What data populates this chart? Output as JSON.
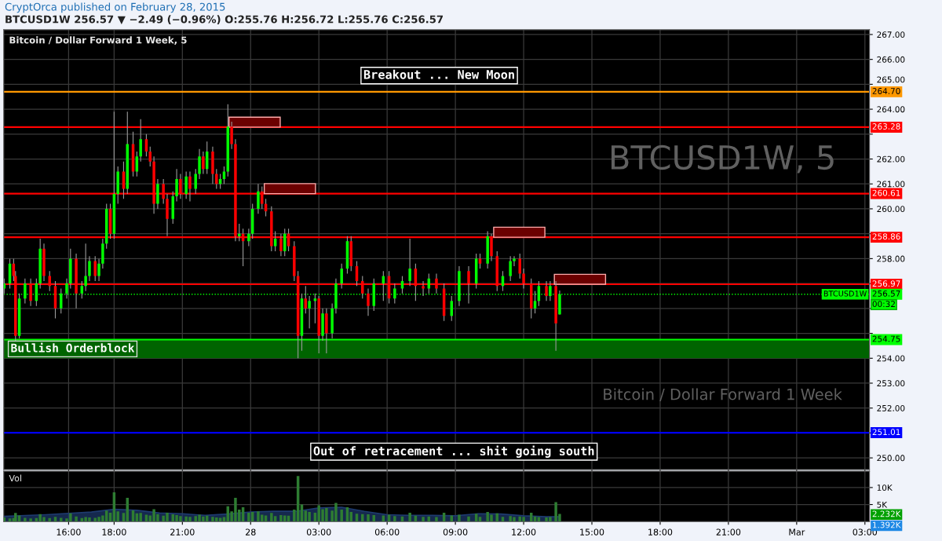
{
  "chart_data": [
    {
      "type": "candlestick",
      "title": "Bitcoin / Dollar Forward 1 Week, 5",
      "x": [
        "2015-02-27T13:10",
        "2015-02-27T13:25",
        "2015-02-27T13:35",
        "2015-02-27T13:40",
        "2015-02-27T13:50",
        "2015-02-27T14:05",
        "2015-02-27T14:20",
        "2015-02-27T14:35",
        "2015-02-27T14:45",
        "2015-02-27T14:55",
        "2015-02-27T15:10",
        "2015-02-27T15:25",
        "2015-02-27T15:40",
        "2015-02-27T15:55",
        "2015-02-27T16:05",
        "2015-02-27T16:20",
        "2015-02-27T16:35",
        "2015-02-27T16:45",
        "2015-02-27T16:55",
        "2015-02-27T17:10",
        "2015-02-27T17:20",
        "2015-02-27T17:30",
        "2015-02-27T17:40",
        "2015-02-27T17:50",
        "2015-02-27T18:00",
        "2015-02-27T18:10",
        "2015-02-27T18:25",
        "2015-02-27T18:35",
        "2015-02-27T18:50",
        "2015-02-27T19:00",
        "2015-02-27T19:10",
        "2015-02-27T19:25",
        "2015-02-27T19:35",
        "2015-02-27T19:45",
        "2015-02-27T19:55",
        "2015-02-27T20:10",
        "2015-02-27T20:20",
        "2015-02-27T20:35",
        "2015-02-27T20:45",
        "2015-02-27T20:55",
        "2015-02-27T21:10",
        "2015-02-27T21:20",
        "2015-02-27T21:35",
        "2015-02-27T21:45",
        "2015-02-27T21:55",
        "2015-02-27T22:05",
        "2015-02-27T22:20",
        "2015-02-27T22:30",
        "2015-02-27T22:40",
        "2015-02-27T22:50",
        "2015-02-27T23:00",
        "2015-02-27T23:10",
        "2015-02-27T23:20",
        "2015-02-27T23:30",
        "2015-02-27T23:40",
        "2015-02-27T23:55",
        "2015-02-28T00:05",
        "2015-02-28T00:20",
        "2015-02-28T00:30",
        "2015-02-28T00:40",
        "2015-02-28T00:55",
        "2015-02-28T01:05",
        "2015-02-28T01:20",
        "2015-02-28T01:30",
        "2015-02-28T01:40",
        "2015-02-28T01:55",
        "2015-02-28T02:05",
        "2015-02-28T02:15",
        "2015-02-28T02:25",
        "2015-02-28T02:35",
        "2015-02-28T02:50",
        "2015-02-28T03:00",
        "2015-02-28T03:10",
        "2015-02-28T03:20",
        "2015-02-28T03:35",
        "2015-02-28T03:45",
        "2015-02-28T04:00",
        "2015-02-28T04:15",
        "2015-02-28T04:25",
        "2015-02-28T04:40",
        "2015-02-28T04:55",
        "2015-02-28T05:10",
        "2015-02-28T05:25",
        "2015-02-28T05:50",
        "2015-02-28T06:05",
        "2015-02-28T06:20",
        "2015-02-28T06:40",
        "2015-02-28T07:00",
        "2015-02-28T07:15",
        "2015-02-28T07:35",
        "2015-02-28T07:50",
        "2015-02-28T08:10",
        "2015-02-28T08:30",
        "2015-02-28T08:50",
        "2015-02-28T09:10",
        "2015-02-28T09:35",
        "2015-02-28T09:55",
        "2015-02-28T10:05",
        "2015-02-28T10:25",
        "2015-02-28T10:35",
        "2015-02-28T10:50",
        "2015-02-28T11:05",
        "2015-02-28T11:25",
        "2015-02-28T11:35",
        "2015-02-28T11:50",
        "2015-02-28T12:00",
        "2015-02-28T12:20",
        "2015-02-28T12:30",
        "2015-02-28T12:40",
        "2015-02-28T13:00",
        "2015-02-28T13:10",
        "2015-02-28T13:25",
        "2015-02-28T13:35"
      ],
      "ohlc": [
        [
          256.8,
          257.2,
          256.6,
          257.0
        ],
        [
          257.0,
          258.0,
          256.8,
          257.8
        ],
        [
          257.8,
          258.0,
          257.1,
          257.3
        ],
        [
          257.3,
          257.5,
          254.7,
          254.9
        ],
        [
          254.9,
          256.6,
          254.8,
          256.4
        ],
        [
          256.4,
          257.2,
          256.2,
          257.0
        ],
        [
          257.0,
          257.2,
          256.1,
          256.3
        ],
        [
          256.3,
          257.2,
          256.1,
          257.0
        ],
        [
          257.0,
          258.8,
          256.8,
          258.4
        ],
        [
          258.4,
          258.6,
          257.1,
          257.3
        ],
        [
          257.3,
          257.5,
          256.7,
          256.9
        ],
        [
          256.9,
          257.1,
          255.6,
          256.0
        ],
        [
          256.0,
          256.8,
          255.8,
          256.6
        ],
        [
          256.6,
          257.2,
          256.4,
          257.0
        ],
        [
          257.0,
          258.4,
          256.8,
          258.0
        ],
        [
          258.0,
          258.2,
          256.0,
          256.6
        ],
        [
          256.6,
          257.1,
          256.4,
          256.9
        ],
        [
          256.9,
          258.6,
          256.7,
          257.3
        ],
        [
          257.3,
          258.1,
          257.1,
          257.9
        ],
        [
          257.9,
          258.1,
          257.1,
          257.3
        ],
        [
          257.3,
          258.0,
          257.1,
          257.8
        ],
        [
          257.8,
          258.8,
          257.6,
          258.6
        ],
        [
          258.6,
          260.2,
          258.4,
          260.0
        ],
        [
          260.0,
          260.2,
          258.8,
          259.0
        ],
        [
          259.0,
          263.9,
          258.8,
          260.6
        ],
        [
          260.6,
          261.7,
          260.2,
          261.5
        ],
        [
          261.5,
          261.9,
          260.4,
          260.8
        ],
        [
          260.8,
          263.9,
          260.6,
          262.6
        ],
        [
          262.6,
          263.1,
          261.3,
          261.5
        ],
        [
          261.5,
          262.3,
          261.3,
          262.1
        ],
        [
          262.1,
          263.6,
          261.9,
          262.8
        ],
        [
          262.8,
          263.0,
          262.1,
          262.3
        ],
        [
          262.3,
          262.5,
          261.7,
          261.9
        ],
        [
          261.9,
          262.1,
          259.8,
          260.2
        ],
        [
          260.2,
          261.2,
          260.0,
          261.0
        ],
        [
          261.0,
          261.2,
          260.2,
          260.4
        ],
        [
          260.4,
          260.6,
          258.9,
          259.6
        ],
        [
          259.6,
          260.7,
          259.4,
          260.5
        ],
        [
          260.5,
          261.6,
          260.3,
          261.2
        ],
        [
          261.2,
          261.4,
          260.4,
          260.6
        ],
        [
          260.6,
          261.5,
          260.4,
          261.3
        ],
        [
          261.3,
          261.5,
          260.3,
          260.8
        ],
        [
          260.8,
          261.6,
          260.6,
          261.4
        ],
        [
          261.4,
          262.4,
          261.2,
          262.1
        ],
        [
          262.1,
          262.3,
          261.4,
          261.6
        ],
        [
          261.6,
          262.7,
          261.4,
          262.3
        ],
        [
          262.3,
          262.5,
          261.0,
          261.4
        ],
        [
          261.4,
          261.6,
          260.8,
          261.0
        ],
        [
          261.0,
          261.4,
          260.8,
          261.2
        ],
        [
          261.2,
          261.7,
          261.0,
          261.5
        ],
        [
          261.5,
          264.2,
          261.3,
          263.3
        ],
        [
          263.3,
          263.5,
          262.4,
          262.6
        ],
        [
          262.6,
          262.8,
          258.7,
          258.9
        ],
        [
          258.9,
          259.4,
          258.7,
          259.0
        ],
        [
          259.0,
          259.2,
          257.7,
          258.7
        ],
        [
          258.7,
          259.2,
          258.5,
          259.0
        ],
        [
          259.0,
          260.2,
          258.8,
          260.0
        ],
        [
          260.0,
          261.0,
          259.8,
          260.7
        ],
        [
          260.7,
          260.9,
          260.0,
          260.2
        ],
        [
          260.2,
          260.4,
          259.7,
          259.9
        ],
        [
          259.9,
          260.1,
          258.3,
          258.5
        ],
        [
          258.5,
          259.1,
          258.3,
          258.8
        ],
        [
          258.8,
          259.0,
          258.1,
          258.3
        ],
        [
          258.3,
          259.2,
          258.1,
          259.0
        ],
        [
          259.0,
          259.2,
          258.3,
          258.5
        ],
        [
          258.5,
          258.7,
          257.1,
          257.3
        ],
        [
          257.3,
          257.5,
          254.0,
          254.9
        ],
        [
          254.9,
          256.6,
          254.3,
          256.4
        ],
        [
          256.4,
          256.9,
          255.8,
          256.0
        ],
        [
          256.0,
          256.5,
          255.2,
          256.3
        ],
        [
          256.3,
          256.6,
          255.4,
          256.4
        ],
        [
          256.4,
          256.5,
          254.2,
          254.9
        ],
        [
          254.9,
          256.0,
          254.7,
          255.8
        ],
        [
          255.8,
          256.0,
          254.2,
          255.0
        ],
        [
          255.0,
          256.2,
          254.8,
          256.0
        ],
        [
          256.0,
          257.2,
          255.8,
          257.0
        ],
        [
          257.0,
          257.8,
          256.8,
          257.6
        ],
        [
          257.6,
          258.9,
          257.4,
          258.7
        ],
        [
          258.7,
          258.9,
          257.5,
          257.7
        ],
        [
          257.7,
          257.9,
          256.9,
          257.1
        ],
        [
          257.1,
          257.3,
          256.4,
          256.6
        ],
        [
          256.6,
          256.8,
          255.7,
          256.1
        ],
        [
          256.1,
          257.2,
          255.9,
          257.0
        ],
        [
          257.0,
          257.5,
          256.3,
          257.3
        ],
        [
          257.3,
          257.5,
          256.2,
          256.4
        ],
        [
          256.4,
          257.0,
          256.2,
          256.8
        ],
        [
          256.8,
          257.3,
          256.6,
          257.1
        ],
        [
          257.1,
          258.8,
          256.9,
          257.6
        ],
        [
          257.6,
          257.8,
          256.3,
          256.9
        ],
        [
          256.9,
          257.1,
          256.5,
          256.8
        ],
        [
          256.8,
          257.4,
          256.6,
          257.2
        ],
        [
          257.2,
          257.4,
          256.6,
          256.8
        ],
        [
          256.8,
          257.0,
          255.5,
          255.7
        ],
        [
          255.7,
          256.5,
          255.5,
          256.3
        ],
        [
          256.3,
          257.7,
          256.1,
          257.5
        ],
        [
          257.5,
          257.7,
          256.2,
          257.0
        ],
        [
          257.0,
          258.2,
          256.8,
          258.0
        ],
        [
          258.0,
          258.2,
          257.6,
          257.8
        ],
        [
          257.8,
          259.1,
          257.6,
          258.9
        ],
        [
          258.9,
          259.0,
          257.9,
          258.1
        ],
        [
          258.1,
          258.3,
          256.7,
          256.9
        ],
        [
          256.9,
          257.5,
          256.7,
          257.3
        ],
        [
          257.3,
          258.1,
          257.1,
          257.9
        ],
        [
          257.9,
          258.1,
          257.7,
          258.0
        ],
        [
          258.0,
          258.2,
          257.2,
          257.4
        ],
        [
          257.4,
          257.6,
          256.8,
          257.0
        ],
        [
          257.0,
          257.2,
          255.6,
          256.0
        ],
        [
          256.0,
          256.7,
          255.8,
          256.3
        ],
        [
          256.3,
          257.1,
          256.1,
          256.9
        ],
        [
          256.9,
          257.1,
          256.3,
          256.5
        ],
        [
          256.5,
          257.1,
          256.3,
          256.9
        ],
        [
          256.9,
          257.1,
          254.3,
          255.4
        ],
        [
          255.76,
          256.72,
          255.76,
          256.57
        ]
      ],
      "colors": [
        "#00ff00",
        "#00ff00",
        "#ff0000",
        "#ff0000",
        "#00ff00",
        "#00ff00",
        "#ff0000",
        "#00ff00",
        "#00ff00",
        "#ff0000",
        "#ff0000",
        "#ff0000",
        "#00ff00",
        "#00ff00",
        "#00ff00",
        "#ff0000",
        "#00ff00",
        "#00ff00",
        "#00ff00",
        "#ff0000",
        "#00ff00",
        "#00ff00",
        "#00ff00",
        "#ff0000",
        "#00ff00",
        "#00ff00",
        "#ff0000",
        "#00ff00",
        "#ff0000",
        "#00ff00",
        "#00ff00",
        "#ff0000",
        "#ff0000",
        "#ff0000",
        "#00ff00",
        "#ff0000",
        "#ff0000",
        "#00ff00",
        "#00ff00",
        "#ff0000",
        "#00ff00",
        "#ff0000",
        "#00ff00",
        "#00ff00",
        "#ff0000",
        "#00ff00",
        "#ff0000",
        "#ff0000",
        "#00ff00",
        "#00ff00",
        "#00ff00",
        "#ff0000",
        "#ff0000",
        "#00ff00",
        "#ff0000",
        "#00ff00",
        "#00ff00",
        "#00ff00",
        "#ff0000",
        "#ff0000",
        "#ff0000",
        "#00ff00",
        "#ff0000",
        "#00ff00",
        "#ff0000",
        "#ff0000",
        "#ff0000",
        "#00ff00",
        "#ff0000",
        "#00ff00",
        "#00ff00",
        "#ff0000",
        "#00ff00",
        "#ff0000",
        "#00ff00",
        "#00ff00",
        "#00ff00",
        "#00ff00",
        "#ff0000",
        "#ff0000",
        "#ff0000",
        "#ff0000",
        "#00ff00",
        "#00ff00",
        "#ff0000",
        "#00ff00",
        "#00ff00",
        "#00ff00",
        "#ff0000",
        "#ff0000",
        "#00ff00",
        "#ff0000",
        "#ff0000",
        "#00ff00",
        "#00ff00",
        "#ff0000",
        "#00ff00",
        "#ff0000",
        "#00ff00",
        "#ff0000",
        "#ff0000",
        "#00ff00",
        "#00ff00",
        "#00ff00",
        "#ff0000",
        "#ff0000",
        "#ff0000",
        "#00ff00",
        "#00ff00",
        "#ff0000",
        "#00ff00",
        "#ff0000",
        "#00ff00"
      ],
      "xlim": [
        "2015-02-27T13:09",
        "2015-03-01T03:12"
      ],
      "ylim": [
        249.53,
        267.19
      ],
      "yticks": [
        {
          "value": 250,
          "label": "250.00"
        },
        {
          "value": 251,
          "label": null
        },
        {
          "value": 252,
          "label": "252.00"
        },
        {
          "value": 253,
          "label": "253.00"
        },
        {
          "value": 254,
          "label": "254.00"
        },
        {
          "value": 255,
          "label": null
        },
        {
          "value": 256,
          "label": null
        },
        {
          "value": 257,
          "label": null
        },
        {
          "value": 258,
          "label": "258.00"
        },
        {
          "value": 259,
          "label": null
        },
        {
          "value": 260,
          "label": "260.00"
        },
        {
          "value": 261,
          "label": "261.00"
        },
        {
          "value": 262,
          "label": "262.00"
        },
        {
          "value": 263,
          "label": null
        },
        {
          "value": 264,
          "label": "264.00"
        },
        {
          "value": 265,
          "label": "265.00"
        },
        {
          "value": 266,
          "label": "266.00"
        },
        {
          "value": 267,
          "label": "267.00"
        }
      ],
      "xticks": [
        {
          "value": "2015-02-27T16:00",
          "label": null
        },
        {
          "value": "2015-02-27T18:00",
          "label": null
        },
        {
          "value": "2015-02-27T21:00",
          "label": null
        },
        {
          "value": "2015-02-28T00:00",
          "label": null
        },
        {
          "value": "2015-02-28T03:00",
          "label": null
        },
        {
          "value": "2015-02-28T06:00",
          "label": null
        },
        {
          "value": "2015-02-28T09:00",
          "label": null
        },
        {
          "value": "2015-02-28T12:00",
          "label": null
        },
        {
          "value": "2015-02-28T15:00",
          "label": null
        },
        {
          "value": "2015-02-28T18:00",
          "label": null
        },
        {
          "value": "2015-02-28T21:00",
          "label": null
        },
        {
          "value": "2015-03-01T00:00",
          "label": null
        },
        {
          "value": "2015-03-01T03:00",
          "label": null
        }
      ],
      "tick_labels": "y",
      "grid": true,
      "ref_lines": [
        {
          "axis": "y",
          "value": 264.7,
          "label": "264.70",
          "color": "#ff9800"
        },
        {
          "axis": "y",
          "value": 263.28,
          "label": "263.28",
          "color": "#ff0000"
        },
        {
          "axis": "y",
          "value": 260.61,
          "label": "260.61",
          "color": "#ff0000"
        },
        {
          "axis": "y",
          "value": 258.86,
          "label": "258.86",
          "color": "#ff0000"
        },
        {
          "axis": "y",
          "value": 256.97,
          "label": "256.97",
          "color": "#ff0000"
        },
        {
          "axis": "y",
          "value": 256.57,
          "label": "256.57",
          "color": "#00ff00",
          "line_style": "dotted"
        },
        {
          "axis": "y",
          "value": 254.75,
          "label": "254.75",
          "color": "#00ff00"
        },
        {
          "axis": "y",
          "value": 251.01,
          "label": "251.01",
          "color": "#0000ff"
        }
      ],
      "bands": [
        {
          "axis": "y",
          "from": 254.0,
          "to": 254.75,
          "label": "Bullish Orderblock",
          "color": "#006400"
        }
      ],
      "annotations": [
        "CryptOrca published on February 28, 2015",
        "BTCUSD1W 256.57 ▼ −2.49 (−0.96%) O:255.76 H:256.72 L:255.76 C:256.57",
        "Breakout ... New Moon",
        "Out of retracement ... shit going south",
        "BTCUSD1W",
        "00:32",
        "BTCUSD1W, 5",
        "Bitcoin / Dollar Forward 1 Week"
      ]
    },
    {
      "type": "bar",
      "title": "Vol",
      "x": [
        "2015-02-27T13:10",
        "2015-02-27T13:25",
        "2015-02-27T13:35",
        "2015-02-27T13:40",
        "2015-02-27T13:50",
        "2015-02-27T14:05",
        "2015-02-27T14:20",
        "2015-02-27T14:35",
        "2015-02-27T14:45",
        "2015-02-27T14:55",
        "2015-02-27T15:10",
        "2015-02-27T15:25",
        "2015-02-27T15:40",
        "2015-02-27T15:55",
        "2015-02-27T16:05",
        "2015-02-27T16:20",
        "2015-02-27T16:35",
        "2015-02-27T16:45",
        "2015-02-27T16:55",
        "2015-02-27T17:10",
        "2015-02-27T17:20",
        "2015-02-27T17:30",
        "2015-02-27T17:40",
        "2015-02-27T17:50",
        "2015-02-27T18:00",
        "2015-02-27T18:10",
        "2015-02-27T18:25",
        "2015-02-27T18:35",
        "2015-02-27T18:50",
        "2015-02-27T19:00",
        "2015-02-27T19:10",
        "2015-02-27T19:25",
        "2015-02-27T19:35",
        "2015-02-27T19:45",
        "2015-02-27T19:55",
        "2015-02-27T20:10",
        "2015-02-27T20:20",
        "2015-02-27T20:35",
        "2015-02-27T20:45",
        "2015-02-27T20:55",
        "2015-02-27T21:10",
        "2015-02-27T21:20",
        "2015-02-27T21:35",
        "2015-02-27T21:45",
        "2015-02-27T21:55",
        "2015-02-27T22:05",
        "2015-02-27T22:20",
        "2015-02-27T22:30",
        "2015-02-27T22:40",
        "2015-02-27T22:50",
        "2015-02-27T23:00",
        "2015-02-27T23:10",
        "2015-02-27T23:20",
        "2015-02-27T23:30",
        "2015-02-27T23:40",
        "2015-02-27T23:55",
        "2015-02-28T00:05",
        "2015-02-28T00:20",
        "2015-02-28T00:30",
        "2015-02-28T00:40",
        "2015-02-28T00:55",
        "2015-02-28T01:05",
        "2015-02-28T01:20",
        "2015-02-28T01:30",
        "2015-02-28T01:40",
        "2015-02-28T01:55",
        "2015-02-28T02:05",
        "2015-02-28T02:15",
        "2015-02-28T02:25",
        "2015-02-28T02:35",
        "2015-02-28T02:50",
        "2015-02-28T03:00",
        "2015-02-28T03:10",
        "2015-02-28T03:20",
        "2015-02-28T03:35",
        "2015-02-28T03:45",
        "2015-02-28T04:00",
        "2015-02-28T04:15",
        "2015-02-28T04:25",
        "2015-02-28T04:40",
        "2015-02-28T04:55",
        "2015-02-28T05:10",
        "2015-02-28T05:25",
        "2015-02-28T05:50",
        "2015-02-28T06:05",
        "2015-02-28T06:20",
        "2015-02-28T06:40",
        "2015-02-28T07:00",
        "2015-02-28T07:15",
        "2015-02-28T07:35",
        "2015-02-28T07:50",
        "2015-02-28T08:10",
        "2015-02-28T08:30",
        "2015-02-28T08:50",
        "2015-02-28T09:10",
        "2015-02-28T09:35",
        "2015-02-28T09:55",
        "2015-02-28T10:05",
        "2015-02-28T10:25",
        "2015-02-28T10:35",
        "2015-02-28T10:50",
        "2015-02-28T11:05",
        "2015-02-28T11:25",
        "2015-02-28T11:35",
        "2015-02-28T11:50",
        "2015-02-28T12:00",
        "2015-02-28T12:20",
        "2015-02-28T12:30",
        "2015-02-28T12:40",
        "2015-02-28T13:00",
        "2015-02-28T13:10",
        "2015-02-28T13:25",
        "2015-02-28T13:35"
      ],
      "series": [
        {
          "type": "bar",
          "color": "#2e7d32",
          "values": [
            1200,
            900,
            1000,
            2500,
            1800,
            1100,
            900,
            1000,
            2200,
            1300,
            1000,
            1400,
            1100,
            900,
            2400,
            1500,
            1000,
            1300,
            1200,
            1100,
            1400,
            1800,
            3200,
            2600,
            8600,
            3000,
            2500,
            7000,
            3300,
            2400,
            2500,
            2000,
            1800,
            3600,
            2200,
            1700,
            2600,
            2100,
            1900,
            1600,
            1500,
            1400,
            1600,
            2000,
            1500,
            1700,
            1400,
            1200,
            1100,
            1300,
            4500,
            3000,
            7000,
            3500,
            4200,
            2600,
            2800,
            3000,
            2000,
            1800,
            2500,
            1600,
            1900,
            1800,
            1700,
            3500,
            13400,
            5000,
            3200,
            2800,
            2600,
            4800,
            3600,
            4000,
            3200,
            5500,
            3500,
            4200,
            2800,
            2300,
            2200,
            2100,
            1900,
            1800,
            2000,
            1600,
            1500,
            2600,
            1700,
            1400,
            1500,
            1300,
            2600,
            1800,
            2000,
            1500,
            2300,
            1400,
            2800,
            2000,
            2400,
            1400,
            1600,
            1300,
            1500,
            1400,
            2600,
            1500,
            1300,
            1200,
            1300,
            5700,
            2232
          ]
        },
        {
          "type": "area",
          "color": "#1e3a6e",
          "x": [
            "2015-02-27T13:10",
            "2015-02-27T15:00",
            "2015-02-27T17:00",
            "2015-02-27T18:00",
            "2015-02-27T19:00",
            "2015-02-27T20:00",
            "2015-02-27T21:00",
            "2015-02-27T22:00",
            "2015-02-27T23:00",
            "2015-02-28T00:00",
            "2015-02-28T01:00",
            "2015-02-28T02:00",
            "2015-02-28T03:00",
            "2015-02-28T04:00",
            "2015-02-28T05:00",
            "2015-02-28T06:00",
            "2015-02-28T07:00",
            "2015-02-28T08:00",
            "2015-02-28T09:00",
            "2015-02-28T10:00",
            "2015-02-28T11:00",
            "2015-02-28T12:00",
            "2015-02-28T13:00",
            "2015-02-28T13:35"
          ],
          "values": [
            1500,
            2000,
            2800,
            3600,
            3300,
            2500,
            2300,
            1800,
            2200,
            2800,
            3000,
            3000,
            4000,
            4200,
            3000,
            2000,
            1800,
            1800,
            1700,
            2300,
            2200,
            1700,
            1400,
            1392
          ]
        }
      ],
      "xlim": [
        "2015-02-27T13:09",
        "2015-03-01T03:12"
      ],
      "ylim": [
        0,
        14800
      ],
      "yticks": [
        {
          "value": 5000,
          "label": "5K"
        },
        {
          "value": 10000,
          "label": "10K"
        }
      ],
      "xticks": [
        {
          "value": "2015-02-27T16:00",
          "label": "16:00"
        },
        {
          "value": "2015-02-27T18:00",
          "label": "18:00"
        },
        {
          "value": "2015-02-27T21:00",
          "label": "21:00"
        },
        {
          "value": "2015-02-28T00:00",
          "label": "28"
        },
        {
          "value": "2015-02-28T03:00",
          "label": "03:00"
        },
        {
          "value": "2015-02-28T06:00",
          "label": "06:00"
        },
        {
          "value": "2015-02-28T09:00",
          "label": "09:00"
        },
        {
          "value": "2015-02-28T12:00",
          "label": "12:00"
        },
        {
          "value": "2015-02-28T15:00",
          "label": "15:00"
        },
        {
          "value": "2015-02-28T18:00",
          "label": "18:00"
        },
        {
          "value": "2015-02-28T21:00",
          "label": "21:00"
        },
        {
          "value": "2015-03-01T00:00",
          "label": "Mar"
        },
        {
          "value": "2015-03-01T03:00",
          "label": "03:00"
        }
      ],
      "grid": true,
      "annotations": [
        "2.232K",
        "1.392K"
      ]
    }
  ]
}
